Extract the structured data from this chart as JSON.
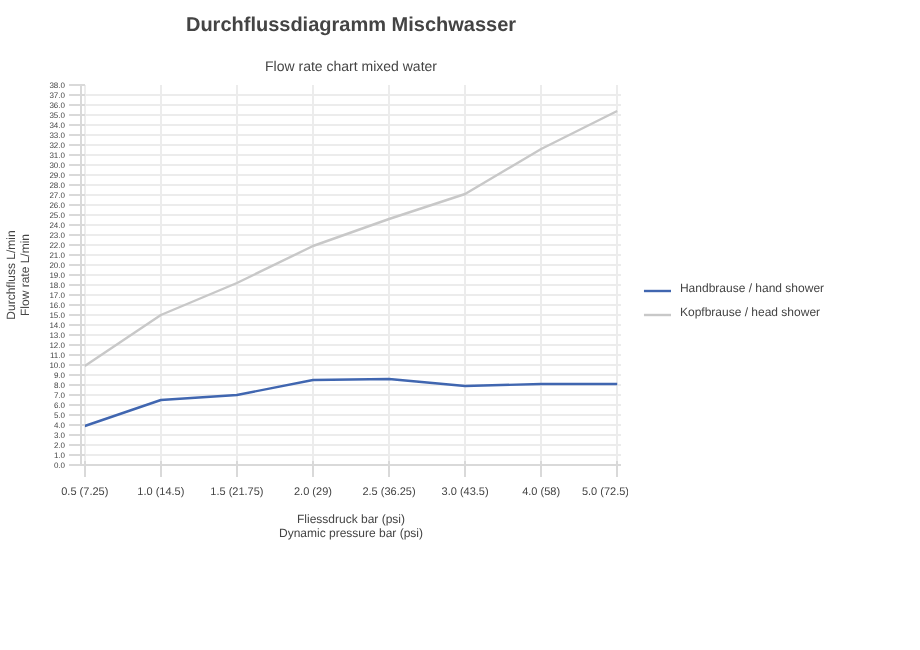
{
  "chart_data": {
    "type": "line",
    "title": "Durchflussdiagramm Mischwasser",
    "subtitle": "Flow rate chart mixed water",
    "xlabel": "Fliessdruck bar (psi)\nDynamic pressure bar (psi)",
    "ylabel": "Durchfluss L/min\nFlow rate L/min",
    "categories": [
      "0.5 (7.25)",
      "1.0 (14.5)",
      "1.5 (21.75)",
      "2.0 (29)",
      "2.5 (36.25)",
      "3.0 (43.5)",
      "4.0 (58)",
      "5.0 (72.5)"
    ],
    "series": [
      {
        "name": "Handbrause / hand shower",
        "color": "#4066b0",
        "values": [
          3.9,
          6.5,
          7.0,
          8.5,
          8.6,
          7.9,
          8.1,
          8.1
        ]
      },
      {
        "name": "Kopfbrause / head shower",
        "color": "#c8c8c8",
        "values": [
          9.9,
          15.0,
          18.2,
          21.9,
          24.6,
          27.1,
          31.6,
          35.4
        ]
      }
    ],
    "ylim": [
      0,
      38
    ],
    "yticks": [
      {
        "value": 0,
        "label": "0.0"
      },
      {
        "value": 1,
        "label": "1.0"
      },
      {
        "value": 2,
        "label": "2.0"
      },
      {
        "value": 3,
        "label": "3.0"
      },
      {
        "value": 4,
        "label": "4.0"
      },
      {
        "value": 5,
        "label": "5.0"
      },
      {
        "value": 6,
        "label": "6.0"
      },
      {
        "value": 7,
        "label": "7.0"
      },
      {
        "value": 8,
        "label": "8.0"
      },
      {
        "value": 9,
        "label": "9.0"
      },
      {
        "value": 10,
        "label": "10.0"
      },
      {
        "value": 11,
        "label": "11.0"
      },
      {
        "value": 12,
        "label": "12.0"
      },
      {
        "value": 13,
        "label": "13.0"
      },
      {
        "value": 14,
        "label": "14.0"
      },
      {
        "value": 15,
        "label": "15.0"
      },
      {
        "value": 16,
        "label": "16.0"
      },
      {
        "value": 17,
        "label": "17.0"
      },
      {
        "value": 18,
        "label": "18.0"
      },
      {
        "value": 19,
        "label": "19.0"
      },
      {
        "value": 20,
        "label": "20.0"
      },
      {
        "value": 21,
        "label": "21.0"
      },
      {
        "value": 22,
        "label": "22.0"
      },
      {
        "value": 23,
        "label": "23.0"
      },
      {
        "value": 24,
        "label": "24.0"
      },
      {
        "value": 25,
        "label": "25.0"
      },
      {
        "value": 26,
        "label": "26.0"
      },
      {
        "value": 27,
        "label": "27.0"
      },
      {
        "value": 28,
        "label": "28.0"
      },
      {
        "value": 29,
        "label": "29.0"
      },
      {
        "value": 30,
        "label": "30.0"
      },
      {
        "value": 31,
        "label": "31.0"
      },
      {
        "value": 32,
        "label": "32.0"
      },
      {
        "value": 33,
        "label": "33.0"
      },
      {
        "value": 34,
        "label": "34.0"
      },
      {
        "value": 35,
        "label": "35.0"
      },
      {
        "value": 36,
        "label": "36.0"
      },
      {
        "value": 37,
        "label": "37.0"
      },
      {
        "value": 38,
        "label": "38.0"
      }
    ],
    "grid": true,
    "legend": "right",
    "marker": "none",
    "line_style": "solid"
  }
}
